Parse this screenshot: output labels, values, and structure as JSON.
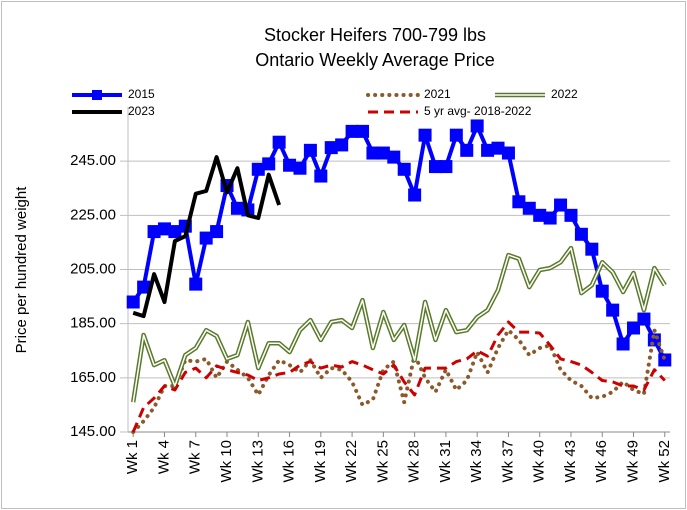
{
  "chart_data": {
    "type": "line",
    "title": "Stocker Heifers 700-799 lbs",
    "subtitle": "Ontario Weekly Average Price",
    "y_label": "Price per hundred weight",
    "categories": [
      "Wk 1",
      null,
      null,
      "Wk 4",
      null,
      null,
      "Wk 7",
      null,
      null,
      "Wk 10",
      null,
      null,
      "Wk 13",
      null,
      null,
      "Wk 16",
      null,
      null,
      "Wk 19",
      null,
      null,
      "Wk 22",
      null,
      null,
      "Wk 25",
      null,
      null,
      "Wk 28",
      null,
      null,
      "Wk 31",
      null,
      null,
      "Wk 34",
      null,
      null,
      "Wk 37",
      null,
      null,
      "Wk 40",
      null,
      null,
      "Wk 43",
      null,
      null,
      "Wk 46",
      null,
      null,
      "Wk 49",
      null,
      null,
      "Wk 52"
    ],
    "ylim": [
      145,
      265
    ],
    "yticks": [
      {
        "value": 145,
        "label": "145.00"
      },
      {
        "value": 165,
        "label": "165.00"
      },
      {
        "value": 185,
        "label": "185.00"
      },
      {
        "value": 205,
        "label": "205.00"
      },
      {
        "value": 225,
        "label": "225.00"
      },
      {
        "value": 245,
        "label": "245.00"
      }
    ],
    "grid": true,
    "legend": "top",
    "series": [
      {
        "name": "2015",
        "color": "#0000ff",
        "line_style": "solid",
        "marker": "square",
        "values": [
          193,
          198.5,
          219,
          220,
          219,
          221,
          199.6,
          216.6,
          219,
          236,
          227.6,
          227,
          242,
          244,
          252,
          243.5,
          242.4,
          249,
          239.5,
          250,
          251,
          256,
          256,
          248,
          248,
          246.5,
          242,
          232.5,
          254.6,
          243,
          243,
          254.6,
          249,
          258,
          249,
          249.8,
          248,
          230,
          227.6,
          225,
          224,
          228.8,
          225,
          218,
          212.5,
          197,
          190,
          177.5,
          183.4,
          186.7,
          179,
          171.6
        ]
      },
      {
        "name": "2021",
        "color": "#8b5a2b",
        "line_style": "dotted",
        "values": [
          145,
          149,
          154,
          162,
          162,
          171.5,
          171,
          172,
          165,
          171,
          168,
          165,
          158.7,
          166,
          171.5,
          169.7,
          167,
          171.5,
          165,
          168.6,
          168,
          163.5,
          155,
          157,
          168,
          171,
          156,
          173.4,
          165,
          159.8,
          168,
          160.5,
          164,
          174.5,
          167,
          176,
          182.6,
          179,
          173.4,
          176,
          177,
          168,
          164,
          162,
          157.5,
          158,
          159.8,
          163.5,
          160.5,
          159,
          182.6,
          171.5
        ]
      },
      {
        "name": "2022",
        "color": "#5a7a2a",
        "line_style": "double",
        "values": [
          156,
          180.8,
          169.7,
          171.5,
          162,
          173.4,
          176,
          182.6,
          180.4,
          172,
          173.4,
          185.6,
          168.6,
          177.8,
          177.8,
          174.5,
          182.6,
          186.3,
          179,
          185.6,
          186.3,
          183.4,
          193.7,
          176,
          189.3,
          179,
          184.5,
          171.5,
          193,
          179,
          190,
          181.9,
          182.6,
          187.4,
          190,
          197.4,
          210.3,
          209,
          198.5,
          204.8,
          205.5,
          207.7,
          212.9,
          196.3,
          199.2,
          207.7,
          204,
          196.7,
          203.7,
          190,
          205.5,
          199.2
        ]
      },
      {
        "name": "2023",
        "color": "#000000",
        "line_style": "solid",
        "values": [
          189,
          187.8,
          203.3,
          193,
          215.5,
          217.3,
          233,
          234,
          246.5,
          233.5,
          242.4,
          225,
          224,
          240,
          228.8,
          null,
          null,
          null,
          null,
          null,
          null,
          null,
          null,
          null,
          null,
          null,
          null,
          null,
          null,
          null,
          null,
          null,
          null,
          null,
          null,
          null,
          null,
          null,
          null,
          null,
          null,
          null,
          null,
          null,
          null,
          null,
          null,
          null,
          null,
          null,
          null,
          null
        ]
      },
      {
        "name": "5 yr avg- 2018-2022",
        "color": "#cc0000",
        "line_style": "dashed",
        "values": [
          145,
          154,
          157.5,
          162,
          160.5,
          167,
          168.6,
          165,
          169.4,
          168,
          167,
          166,
          164,
          165,
          166.4,
          167,
          169.7,
          171,
          168.6,
          169.7,
          169,
          171,
          169.7,
          168,
          166.4,
          169.7,
          163.5,
          158.7,
          168.6,
          168.6,
          168.6,
          171,
          172,
          175,
          173,
          180.8,
          185.6,
          181.9,
          181.9,
          181.5,
          177,
          172,
          171,
          169.7,
          167,
          164,
          163.5,
          162,
          162,
          160.5,
          168,
          164
        ]
      }
    ]
  }
}
